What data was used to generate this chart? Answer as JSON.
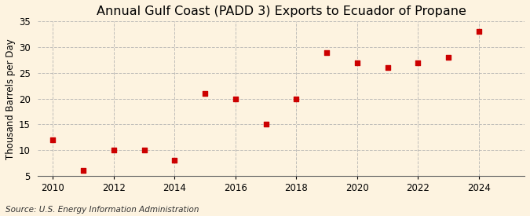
{
  "title": "Annual Gulf Coast (PADD 3) Exports to Ecuador of Propane",
  "ylabel": "Thousand Barrels per Day",
  "source": "Source: U.S. Energy Information Administration",
  "background_color": "#fdf3e0",
  "years": [
    2010,
    2011,
    2012,
    2013,
    2014,
    2015,
    2016,
    2017,
    2018,
    2019,
    2020,
    2021,
    2022,
    2023,
    2024
  ],
  "values": [
    12,
    6,
    10,
    10,
    8,
    21,
    20,
    15,
    20,
    29,
    27,
    26,
    27,
    28,
    33
  ],
  "marker_color": "#cc0000",
  "marker_size": 25,
  "xlim": [
    2009.5,
    2025.5
  ],
  "ylim": [
    5,
    35
  ],
  "yticks": [
    5,
    10,
    15,
    20,
    25,
    30,
    35
  ],
  "xticks": [
    2010,
    2012,
    2014,
    2016,
    2018,
    2020,
    2022,
    2024
  ],
  "grid_color": "#b0b0b0",
  "grid_style": "--",
  "title_fontsize": 11.5,
  "label_fontsize": 8.5,
  "tick_fontsize": 8.5,
  "source_fontsize": 7.5
}
